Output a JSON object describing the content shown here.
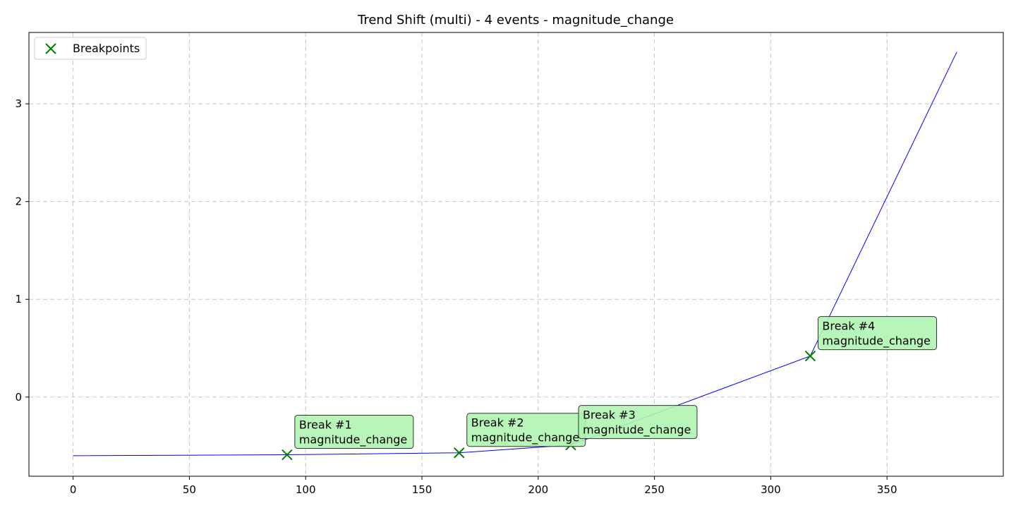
{
  "chart_data": {
    "type": "line",
    "title": "Trend Shift (multi) - 4 events - magnitude_change",
    "xlabel": "",
    "ylabel": "",
    "xlim": [
      -19,
      400
    ],
    "ylim": [
      -0.81,
      3.73
    ],
    "xticks": [
      0,
      50,
      100,
      150,
      200,
      250,
      300,
      350
    ],
    "yticks": [
      0,
      1,
      2,
      3
    ],
    "grid": true,
    "legend": {
      "position": "top-left",
      "entries": [
        "Breakpoints"
      ]
    },
    "series": [
      {
        "line_color": "#0000ff",
        "x": [
          0,
          92,
          166,
          214,
          317,
          380
        ],
        "y": [
          -0.6,
          -0.59,
          -0.57,
          -0.49,
          0.42,
          3.53
        ]
      }
    ],
    "breakpoints": {
      "name": "Breakpoints",
      "color": "#008000",
      "x": [
        92,
        166,
        214,
        317
      ],
      "y": [
        -0.59,
        -0.57,
        -0.49,
        0.42
      ]
    },
    "annotations": [
      {
        "line1": "Break #1",
        "line2": "magnitude_change",
        "x": 92,
        "y": -0.59
      },
      {
        "line1": "Break #2",
        "line2": "magnitude_change",
        "x": 166,
        "y": -0.57
      },
      {
        "line1": "Break #3",
        "line2": "magnitude_change",
        "x": 214,
        "y": -0.49
      },
      {
        "line1": "Break #4",
        "line2": "magnitude_change",
        "x": 317,
        "y": 0.42
      }
    ],
    "annotation_box_color": "#b0f4b0"
  }
}
